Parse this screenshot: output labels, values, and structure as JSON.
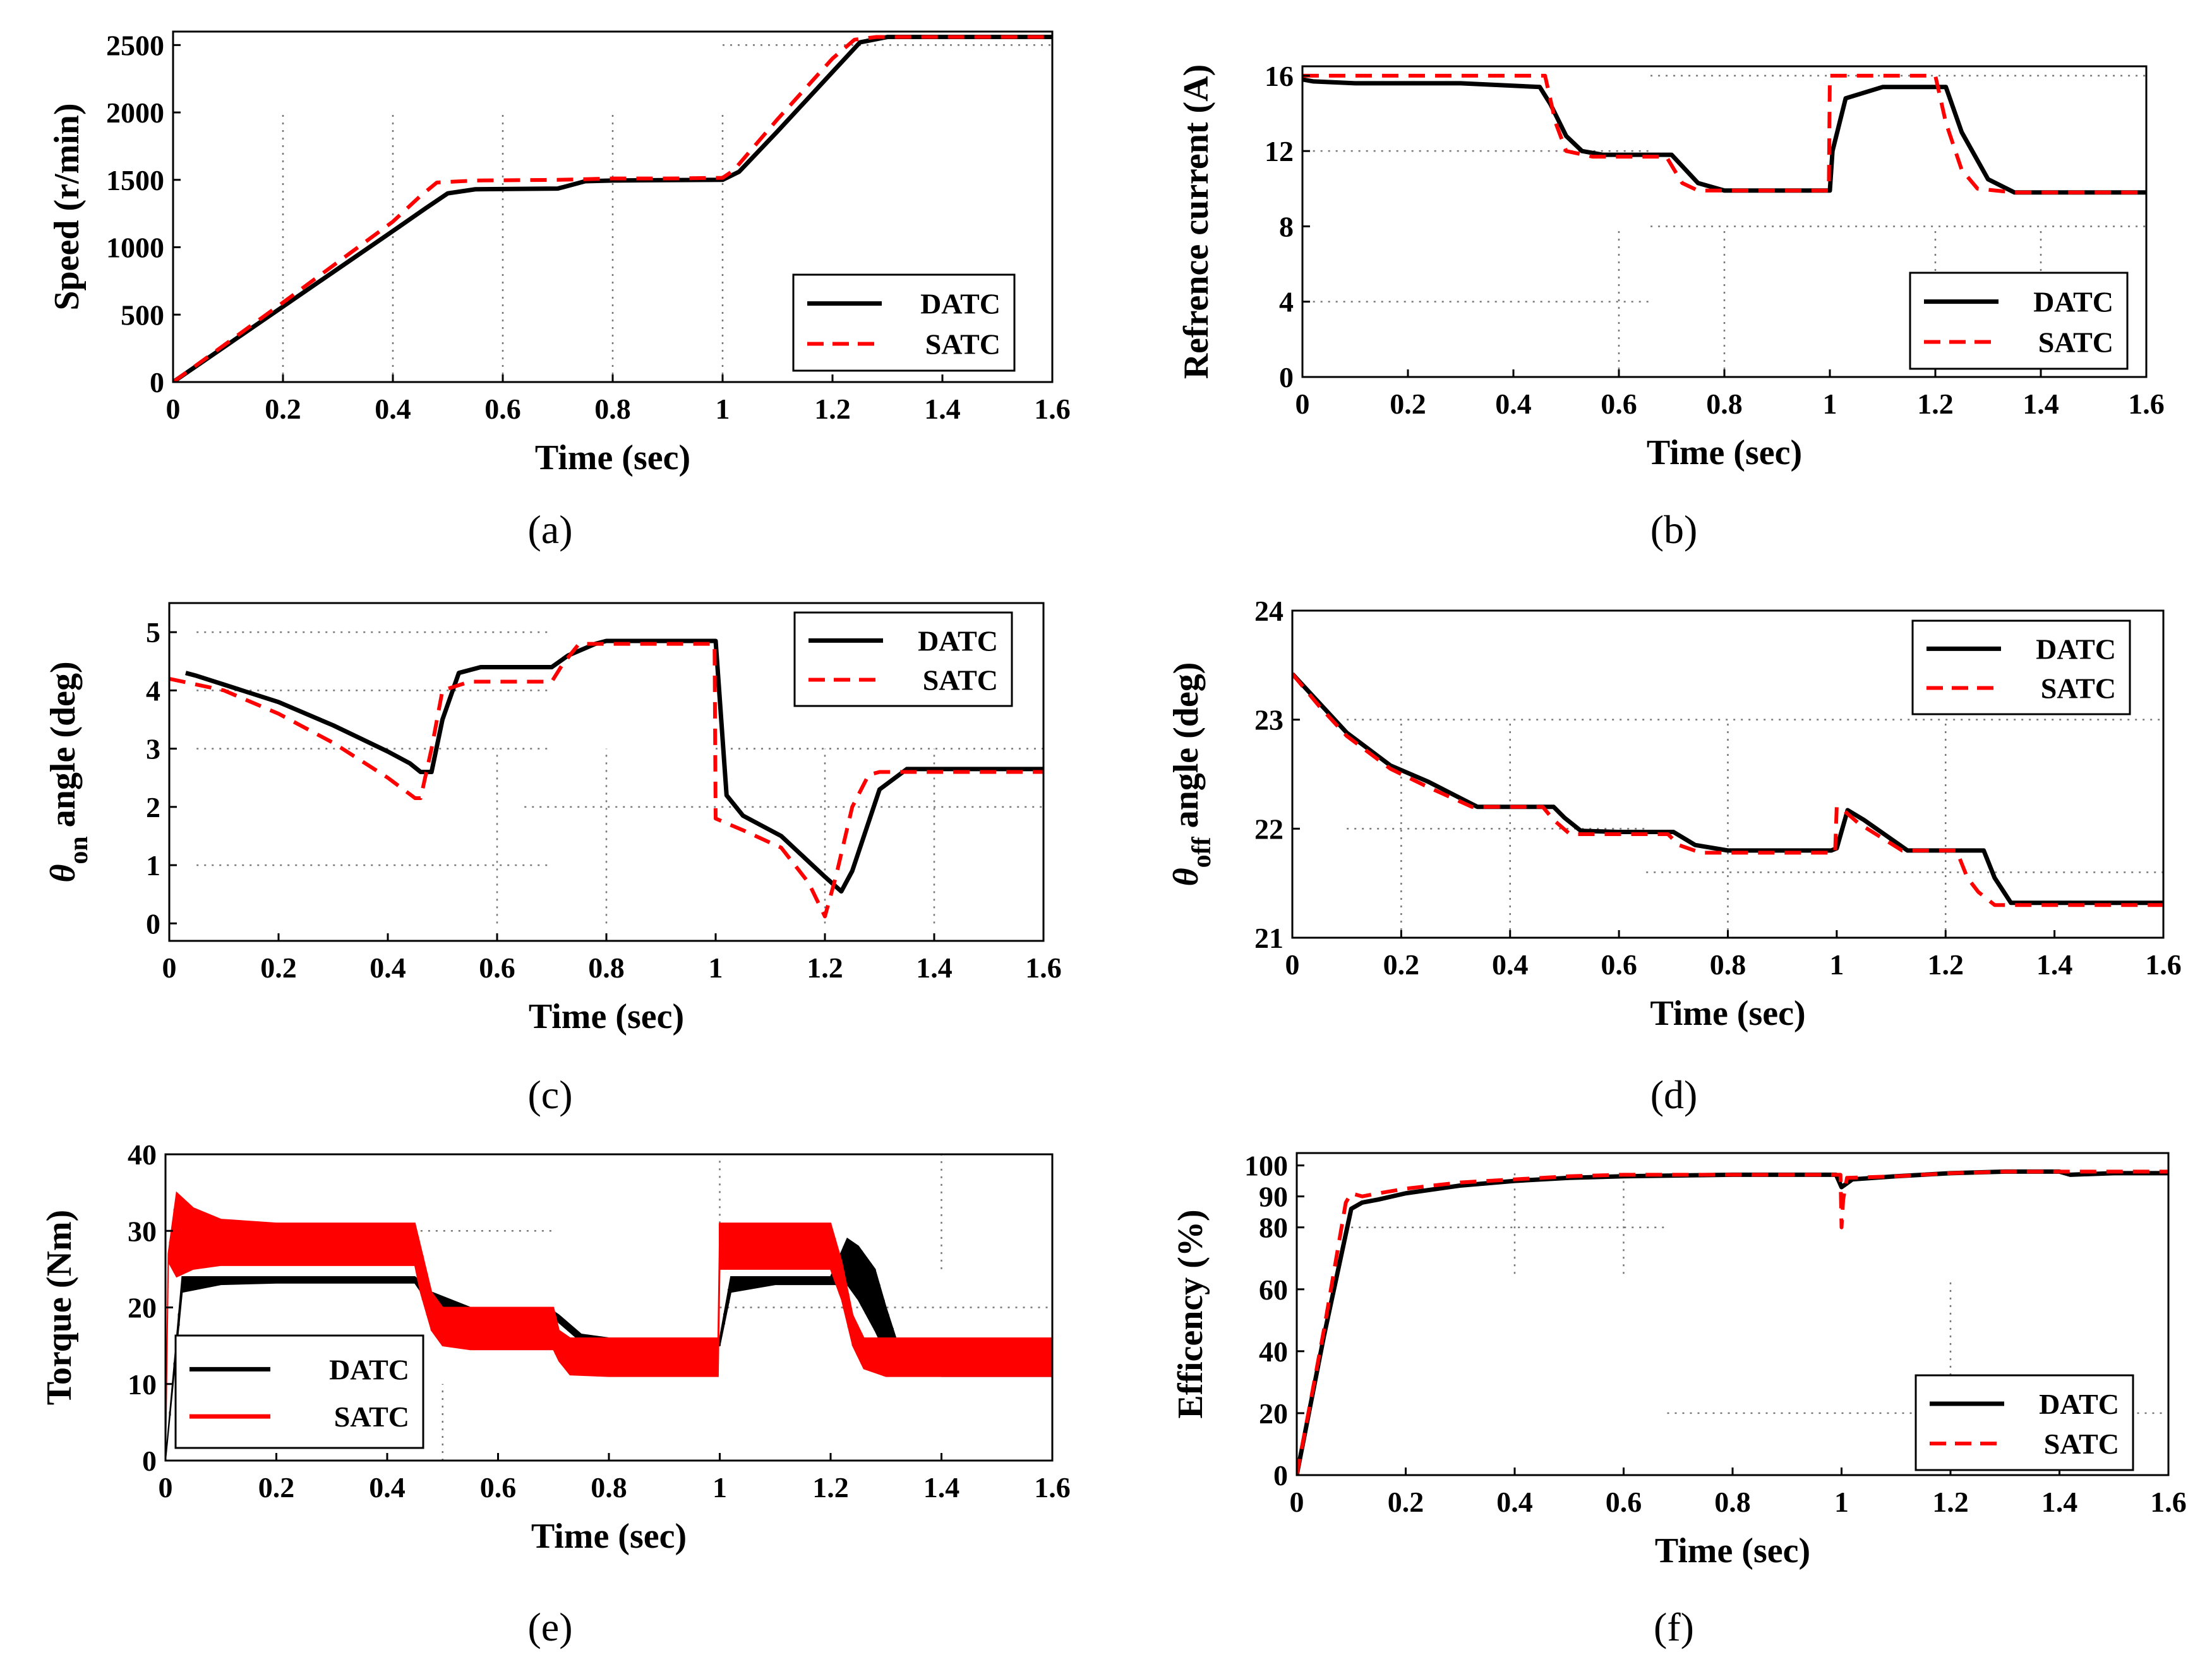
{
  "figure": {
    "legend_names": [
      "DATC",
      "SATC"
    ],
    "colors": {
      "DATC": "#000000",
      "SATC": "#ff0000"
    }
  },
  "chart_data": [
    {
      "id": "a",
      "panel_label": "(a)",
      "type": "line",
      "xlabel": "Time (sec)",
      "ylabel": "Speed (r/min)",
      "xlim": [
        0,
        1.6
      ],
      "ylim": [
        0,
        2600
      ],
      "xticks": [
        "0",
        "0.2",
        "0.4",
        "0.6",
        "0.8",
        "1",
        "1.2",
        "1.4",
        "1.6"
      ],
      "xtick_values": [
        0,
        0.2,
        0.4,
        0.6,
        0.8,
        1,
        1.2,
        1.4,
        1.6
      ],
      "yticks": [
        "0",
        "500",
        "1000",
        "1500",
        "2000",
        "2500"
      ],
      "ytick_values": [
        0,
        500,
        1000,
        1500,
        2000,
        2500
      ],
      "grid": "dotted",
      "legend_position": "bottom-right",
      "series": [
        {
          "name": "DATC",
          "style": "solid",
          "color": "#000000",
          "x": [
            0,
            0.1,
            0.2,
            0.3,
            0.4,
            0.46,
            0.5,
            0.55,
            0.7,
            0.75,
            0.8,
            0.9,
            1.0,
            1.03,
            1.1,
            1.2,
            1.25,
            1.3,
            1.6
          ],
          "y": [
            0,
            280,
            560,
            840,
            1120,
            1290,
            1400,
            1430,
            1435,
            1490,
            1495,
            1498,
            1500,
            1560,
            1860,
            2300,
            2520,
            2560,
            2560
          ]
        },
        {
          "name": "SATC",
          "style": "dashed",
          "color": "#ff0000",
          "x": [
            0,
            0.1,
            0.2,
            0.3,
            0.4,
            0.45,
            0.48,
            0.55,
            0.7,
            0.8,
            0.9,
            1.0,
            1.02,
            1.1,
            1.2,
            1.24,
            1.28,
            1.6
          ],
          "y": [
            0,
            295,
            590,
            890,
            1190,
            1380,
            1480,
            1495,
            1500,
            1510,
            1510,
            1515,
            1570,
            1950,
            2400,
            2540,
            2560,
            2560
          ]
        }
      ]
    },
    {
      "id": "b",
      "panel_label": "(b)",
      "type": "line",
      "xlabel": "Time (sec)",
      "ylabel": "Refrence current (A)",
      "xlim": [
        0,
        1.6
      ],
      "ylim": [
        0,
        16.5
      ],
      "xticks": [
        "0",
        "0.2",
        "0.4",
        "0.6",
        "0.8",
        "1",
        "1.2",
        "1.4",
        "1.6"
      ],
      "xtick_values": [
        0,
        0.2,
        0.4,
        0.6,
        0.8,
        1,
        1.2,
        1.4,
        1.6
      ],
      "yticks": [
        "0",
        "4",
        "8",
        "12",
        "16"
      ],
      "ytick_values": [
        0,
        4,
        8,
        12,
        16
      ],
      "grid": "dotted",
      "legend_position": "bottom-right",
      "series": [
        {
          "name": "DATC",
          "style": "solid",
          "color": "#000000",
          "x": [
            0,
            0.02,
            0.1,
            0.3,
            0.45,
            0.47,
            0.5,
            0.53,
            0.57,
            0.7,
            0.72,
            0.75,
            0.8,
            1.0,
            1.005,
            1.03,
            1.1,
            1.22,
            1.25,
            1.3,
            1.35,
            1.6
          ],
          "y": [
            15.8,
            15.7,
            15.6,
            15.6,
            15.4,
            14.5,
            12.8,
            12.0,
            11.8,
            11.8,
            11.2,
            10.3,
            9.9,
            9.9,
            12.0,
            14.8,
            15.4,
            15.4,
            13.0,
            10.5,
            9.8,
            9.8
          ]
        },
        {
          "name": "SATC",
          "style": "dashed",
          "color": "#ff0000",
          "x": [
            0,
            0.46,
            0.48,
            0.5,
            0.55,
            0.69,
            0.72,
            0.75,
            0.8,
            0.998,
            1.0,
            1.2,
            1.22,
            1.25,
            1.28,
            1.35,
            1.6
          ],
          "y": [
            16,
            16,
            13.5,
            12.0,
            11.7,
            11.7,
            10.3,
            9.9,
            9.9,
            9.9,
            16,
            16,
            13.5,
            11.0,
            10.0,
            9.8,
            9.8
          ]
        }
      ]
    },
    {
      "id": "c",
      "panel_label": "(c)",
      "type": "line",
      "xlabel": "Time (sec)",
      "ylabel_parts": [
        "θ",
        "on",
        " angle (deg)"
      ],
      "xlim": [
        0,
        1.6
      ],
      "ylim": [
        -0.3,
        5.5
      ],
      "xticks": [
        "0",
        "0.2",
        "0.4",
        "0.6",
        "0.8",
        "1",
        "1.2",
        "1.4",
        "1.6"
      ],
      "xtick_values": [
        0,
        0.2,
        0.4,
        0.6,
        0.8,
        1,
        1.2,
        1.4,
        1.6
      ],
      "yticks": [
        "0",
        "1",
        "2",
        "3",
        "4",
        "5"
      ],
      "ytick_values": [
        0,
        1,
        2,
        3,
        4,
        5
      ],
      "grid": "dotted",
      "legend_position": "top-right",
      "series": [
        {
          "name": "DATC",
          "style": "solid",
          "color": "#000000",
          "x": [
            0.03,
            0.05,
            0.1,
            0.2,
            0.3,
            0.4,
            0.44,
            0.46,
            0.48,
            0.5,
            0.53,
            0.57,
            0.7,
            0.73,
            0.78,
            0.8,
            0.99,
            1.0,
            1.02,
            1.05,
            1.12,
            1.2,
            1.23,
            1.25,
            1.3,
            1.35,
            1.6
          ],
          "y": [
            4.3,
            4.25,
            4.1,
            3.8,
            3.4,
            2.95,
            2.75,
            2.6,
            2.6,
            3.5,
            4.3,
            4.4,
            4.4,
            4.6,
            4.8,
            4.85,
            4.85,
            4.85,
            2.2,
            1.85,
            1.5,
            0.8,
            0.55,
            0.9,
            2.3,
            2.65,
            2.65
          ]
        },
        {
          "name": "SATC",
          "style": "dashed",
          "color": "#ff0000",
          "x": [
            0,
            0.1,
            0.2,
            0.3,
            0.4,
            0.45,
            0.46,
            0.48,
            0.5,
            0.55,
            0.7,
            0.72,
            0.75,
            0.8,
            0.998,
            1.0,
            1.05,
            1.12,
            1.17,
            1.2,
            1.22,
            1.25,
            1.28,
            1.3,
            1.6
          ],
          "y": [
            4.2,
            4.0,
            3.6,
            3.1,
            2.5,
            2.15,
            2.15,
            3.0,
            4.0,
            4.15,
            4.15,
            4.45,
            4.8,
            4.8,
            4.8,
            1.8,
            1.6,
            1.3,
            0.7,
            0.12,
            0.8,
            2.0,
            2.55,
            2.6,
            2.6
          ]
        }
      ]
    },
    {
      "id": "d",
      "panel_label": "(d)",
      "type": "line",
      "xlabel": "Time (sec)",
      "ylabel_parts": [
        "θ",
        "off",
        " angle (deg)"
      ],
      "xlim": [
        0,
        1.6
      ],
      "ylim": [
        21,
        24
      ],
      "xticks": [
        "0",
        "0.2",
        "0.4",
        "0.6",
        "0.8",
        "1",
        "1.2",
        "1.4",
        "1.6"
      ],
      "xtick_values": [
        0,
        0.2,
        0.4,
        0.6,
        0.8,
        1,
        1.2,
        1.4,
        1.6
      ],
      "yticks": [
        "21",
        "22",
        "23",
        "24"
      ],
      "ytick_values": [
        21,
        22,
        23,
        24
      ],
      "grid": "dotted",
      "legend_position": "top-right",
      "series": [
        {
          "name": "DATC",
          "style": "solid",
          "color": "#000000",
          "x": [
            0,
            0.05,
            0.1,
            0.18,
            0.25,
            0.34,
            0.48,
            0.5,
            0.53,
            0.6,
            0.7,
            0.74,
            0.8,
            0.99,
            1.0,
            1.02,
            1.05,
            1.13,
            1.27,
            1.29,
            1.32,
            1.6
          ],
          "y": [
            23.42,
            23.15,
            22.88,
            22.58,
            22.43,
            22.2,
            22.2,
            22.1,
            21.98,
            21.97,
            21.97,
            21.85,
            21.8,
            21.8,
            21.82,
            22.17,
            22.08,
            21.8,
            21.8,
            21.55,
            21.32,
            21.32
          ]
        },
        {
          "name": "SATC",
          "style": "dashed",
          "color": "#ff0000",
          "x": [
            0,
            0.05,
            0.1,
            0.18,
            0.25,
            0.33,
            0.46,
            0.48,
            0.51,
            0.6,
            0.69,
            0.71,
            0.75,
            0.8,
            0.997,
            1.0,
            1.01,
            1.04,
            1.12,
            1.22,
            1.24,
            1.26,
            1.29,
            1.6
          ],
          "y": [
            23.42,
            23.12,
            22.85,
            22.55,
            22.38,
            22.2,
            22.2,
            22.08,
            21.95,
            21.95,
            21.95,
            21.85,
            21.78,
            21.78,
            21.78,
            22.2,
            22.18,
            22.05,
            21.8,
            21.8,
            21.55,
            21.42,
            21.3,
            21.3
          ]
        }
      ]
    },
    {
      "id": "e",
      "panel_label": "(e)",
      "type": "area",
      "xlabel": "Time (sec)",
      "ylabel": "Torque (Nm)",
      "xlim": [
        0,
        1.6
      ],
      "ylim": [
        0,
        40
      ],
      "xticks": [
        "0",
        "0.2",
        "0.4",
        "0.6",
        "0.8",
        "1",
        "1.2",
        "1.4",
        "1.6"
      ],
      "xtick_values": [
        0,
        0.2,
        0.4,
        0.6,
        0.8,
        1,
        1.2,
        1.4,
        1.6
      ],
      "yticks": [
        "0",
        "10",
        "20",
        "30",
        "40"
      ],
      "ytick_values": [
        0,
        10,
        20,
        30,
        40
      ],
      "grid": "dotted",
      "legend_position": "bottom-left",
      "note": "ripple bands drawn as min/max envelopes",
      "series": [
        {
          "name": "DATC",
          "style": "band",
          "color": "#000000",
          "x": [
            0.0,
            0.03,
            0.1,
            0.2,
            0.3,
            0.44,
            0.45,
            0.48,
            0.55,
            0.69,
            0.71,
            0.75,
            0.8,
            0.99,
            1.0,
            1.02,
            1.1,
            1.2,
            1.23,
            1.25,
            1.28,
            1.3,
            1.32,
            1.4,
            1.6
          ],
          "lower": [
            0,
            22,
            23,
            23.2,
            23.2,
            23.2,
            23.2,
            20,
            19.5,
            19.5,
            18,
            15.5,
            15,
            15,
            15,
            22,
            23,
            23,
            23,
            21,
            17,
            14,
            11.5,
            11,
            11
          ],
          "upper": [
            0,
            24,
            24,
            24,
            24,
            24,
            24,
            22,
            20,
            20,
            19,
            16.5,
            16,
            16,
            16,
            24,
            24,
            24,
            29,
            28,
            25,
            20,
            15.5,
            15.5,
            15.5
          ]
        },
        {
          "name": "SATC",
          "style": "band",
          "color": "#ff0000",
          "x": [
            0.0,
            0.005,
            0.02,
            0.05,
            0.1,
            0.2,
            0.3,
            0.45,
            0.46,
            0.48,
            0.5,
            0.55,
            0.7,
            0.71,
            0.73,
            0.8,
            0.997,
            1.0,
            1.1,
            1.2,
            1.22,
            1.24,
            1.26,
            1.3,
            1.6
          ],
          "lower": [
            0,
            26,
            24,
            25,
            25.5,
            25.5,
            25.5,
            25.5,
            22,
            17,
            15,
            14.5,
            14.5,
            13,
            11.2,
            11,
            11,
            25,
            25,
            25,
            21,
            15,
            12,
            11,
            11
          ],
          "upper": [
            0,
            27,
            35,
            33,
            31.5,
            31,
            31,
            31,
            28,
            22,
            20,
            20,
            20,
            17,
            16,
            16,
            16,
            31,
            31,
            31,
            26,
            19,
            16,
            16,
            16
          ]
        }
      ]
    },
    {
      "id": "f",
      "panel_label": "(f)",
      "type": "line",
      "xlabel": "Time (sec)",
      "ylabel": "Efficency (%)",
      "xlim": [
        0,
        1.6
      ],
      "ylim": [
        0,
        104
      ],
      "xticks": [
        "0",
        "0.2",
        "0.4",
        "0.6",
        "0.8",
        "1",
        "1.2",
        "1.4",
        "1.6"
      ],
      "xtick_values": [
        0,
        0.2,
        0.4,
        0.6,
        0.8,
        1,
        1.2,
        1.4,
        1.6
      ],
      "yticks": [
        "0",
        "20",
        "40",
        "60",
        "80",
        "90",
        "100"
      ],
      "ytick_values": [
        0,
        20,
        40,
        60,
        80,
        90,
        100
      ],
      "grid": "dotted",
      "legend_position": "bottom-right",
      "series": [
        {
          "name": "DATC",
          "style": "solid",
          "color": "#000000",
          "x": [
            0,
            0.05,
            0.1,
            0.12,
            0.15,
            0.2,
            0.3,
            0.4,
            0.5,
            0.6,
            0.8,
            0.99,
            1.0,
            1.02,
            1.1,
            1.2,
            1.3,
            1.4,
            1.42,
            1.5,
            1.6
          ],
          "y": [
            0,
            45,
            86,
            88,
            89,
            91,
            93.5,
            95,
            96,
            96.5,
            97,
            97,
            93,
            95.5,
            96.5,
            97.5,
            98,
            98,
            97,
            97.5,
            97.5
          ]
        },
        {
          "name": "SATC",
          "style": "dashed",
          "color": "#ff0000",
          "x": [
            0,
            0.05,
            0.09,
            0.1,
            0.12,
            0.15,
            0.2,
            0.3,
            0.4,
            0.5,
            0.6,
            0.8,
            0.998,
            1.0,
            1.003,
            1.01,
            1.1,
            1.2,
            1.3,
            1.6
          ],
          "y": [
            0,
            47,
            88,
            91,
            90,
            91,
            92.5,
            94.5,
            95.5,
            96.5,
            97,
            97,
            97,
            80,
            89,
            96,
            96.5,
            97.5,
            98,
            98
          ]
        }
      ]
    }
  ]
}
